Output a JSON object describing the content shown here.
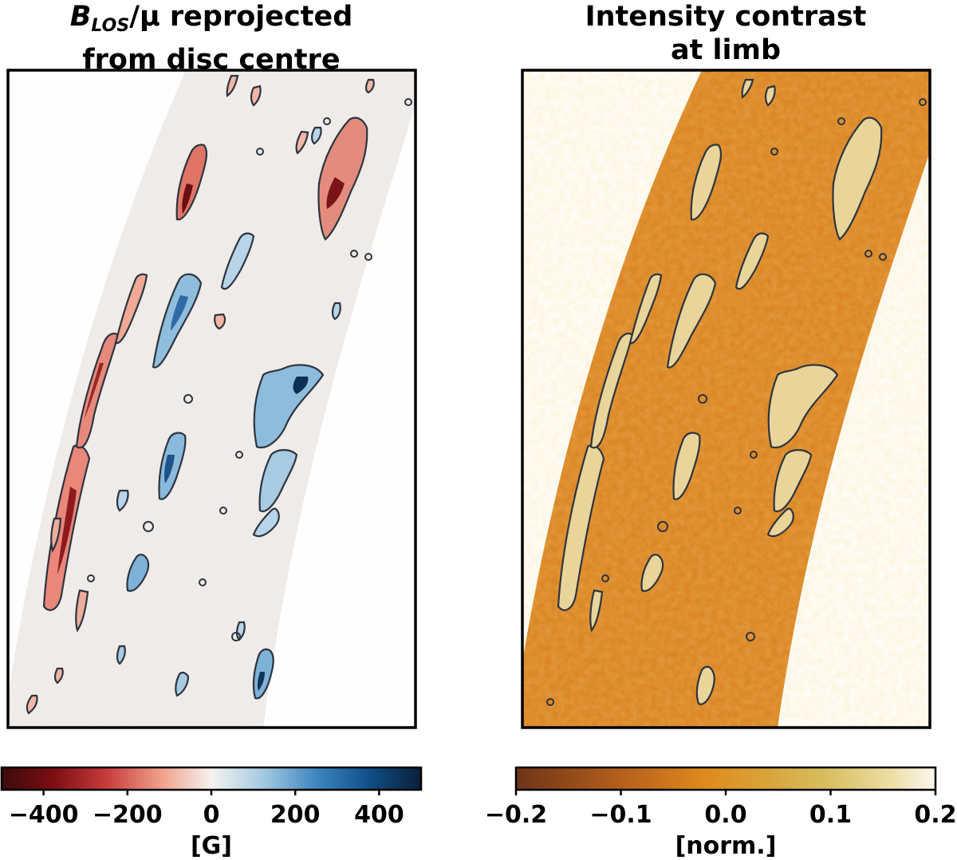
{
  "figure": {
    "left_panel": {
      "title_symbol": "B",
      "title_subscript": "LOS",
      "title_rest_line1": "/μ reprojected",
      "title_line2": "from disc centre",
      "colormap": "RdBu (red negative, white zero, blue positive)"
    },
    "right_panel": {
      "title_line1": "Intensity contrast",
      "title_line2": "at limb",
      "colormap": "brown-orange-yellow-white"
    }
  },
  "colors": {
    "frame": "#000000",
    "contour": "#2c3440",
    "left_background": "#efebe8",
    "right_background": "#d9801e"
  },
  "chart_data": [
    {
      "type": "heatmap",
      "title": "B_LOS/μ reprojected from disc centre",
      "colorbar": {
        "label": "[G]",
        "range": [
          -500,
          500
        ],
        "ticks": [
          -400,
          -200,
          0,
          200,
          400
        ],
        "tick_labels": [
          "−400",
          "−200",
          "0",
          "200",
          "400"
        ]
      }
    },
    {
      "type": "heatmap",
      "title": "Intensity contrast at limb",
      "colorbar": {
        "label": "[norm.]",
        "range": [
          -0.2,
          0.2
        ],
        "ticks": [
          -0.2,
          -0.1,
          0.0,
          0.1,
          0.2
        ],
        "tick_labels": [
          "−0.2",
          "−0.1",
          "0.0",
          "0.1",
          "0.2"
        ]
      }
    }
  ]
}
